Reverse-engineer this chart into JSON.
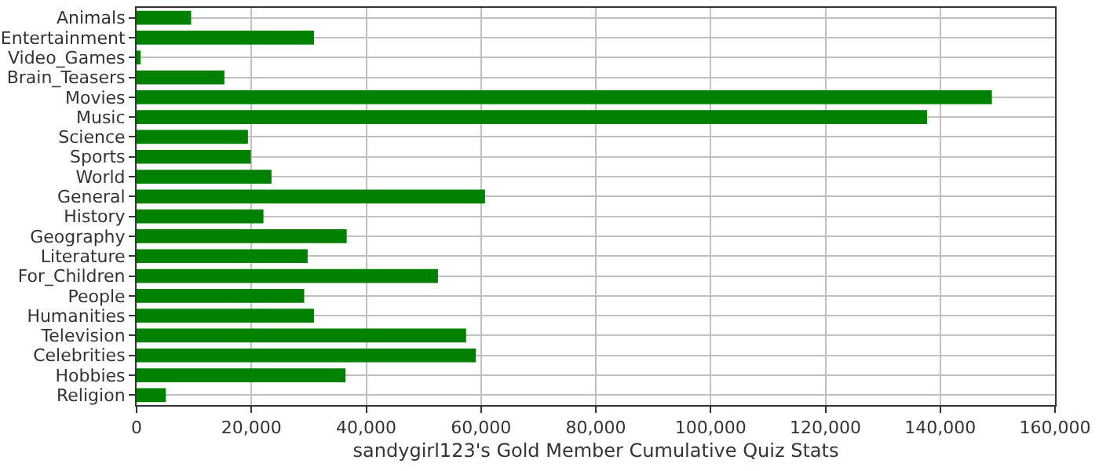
{
  "chart_data": {
    "type": "bar",
    "orientation": "horizontal",
    "xlabel": "sandygirl123's Gold Member Cumulative Quiz Stats",
    "categories": [
      "Animals",
      "Entertainment",
      "Video_Games",
      "Brain_Teasers",
      "Movies",
      "Music",
      "Science",
      "Sports",
      "World",
      "General",
      "History",
      "Geography",
      "Literature",
      "For_Children",
      "People",
      "Humanities",
      "Television",
      "Celebrities",
      "Hobbies",
      "Religion"
    ],
    "values": [
      9500,
      30900,
      700,
      15300,
      149000,
      137700,
      19400,
      19900,
      23500,
      60700,
      22100,
      36600,
      29800,
      52500,
      29200,
      30900,
      57400,
      59100,
      36400,
      5100
    ],
    "color": "#008000",
    "xlim": [
      0,
      160000
    ],
    "xticks": [
      {
        "value": 0,
        "label": "0"
      },
      {
        "value": 20000,
        "label": "20,000"
      },
      {
        "value": 40000,
        "label": "40,000"
      },
      {
        "value": 60000,
        "label": "60,000"
      },
      {
        "value": 80000,
        "label": "80,000"
      },
      {
        "value": 100000,
        "label": "100,000"
      },
      {
        "value": 120000,
        "label": "120,000"
      },
      {
        "value": 140000,
        "label": "140,000"
      },
      {
        "value": 160000,
        "label": "160,000"
      }
    ],
    "grid": true
  }
}
